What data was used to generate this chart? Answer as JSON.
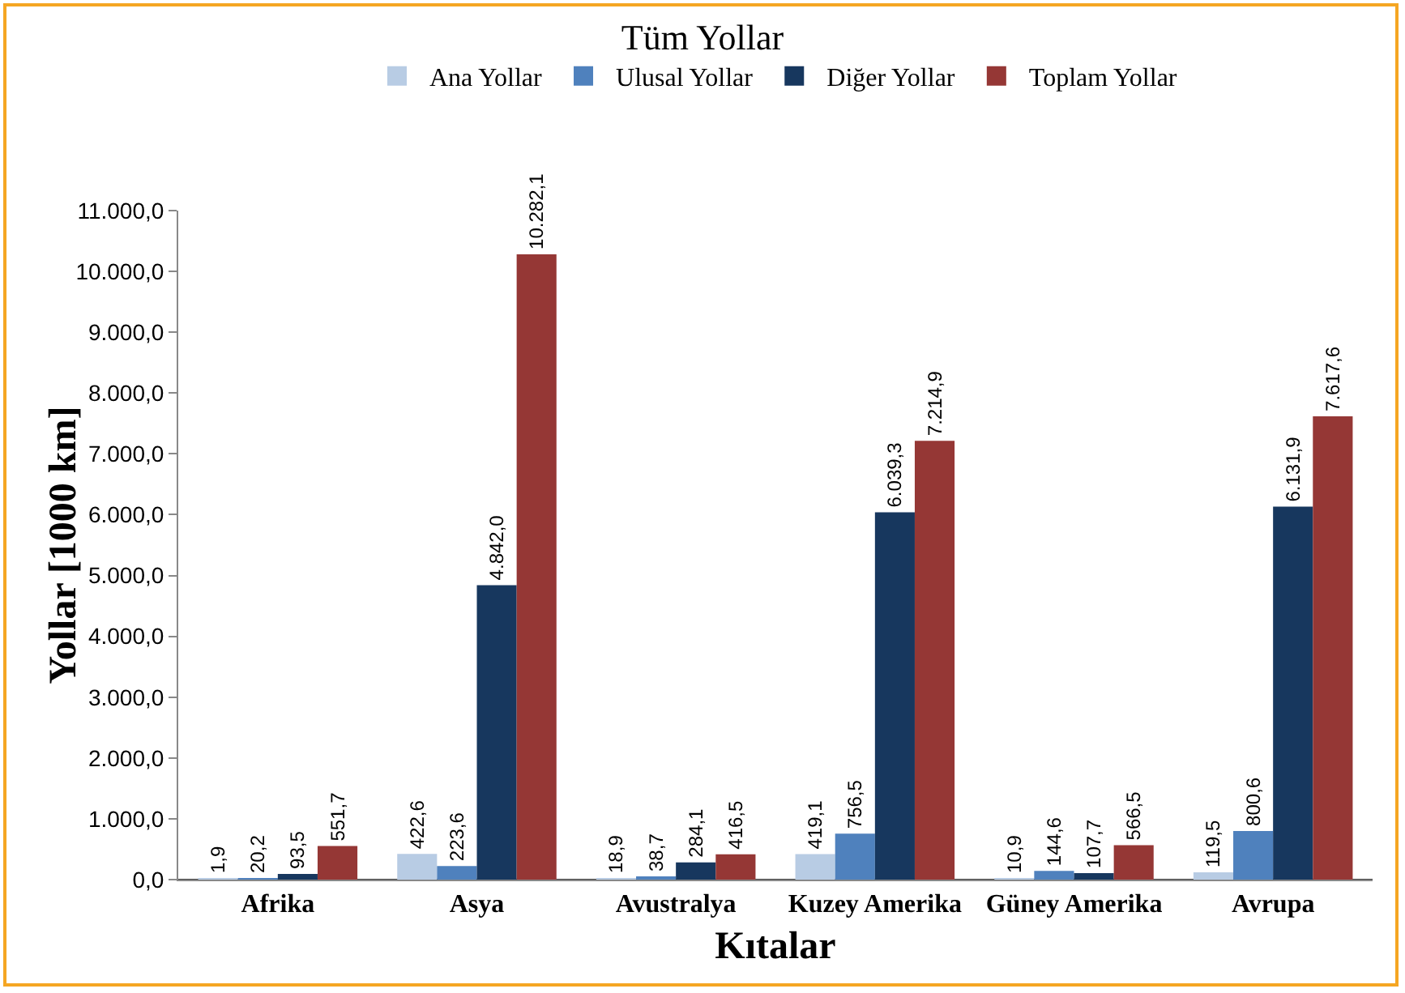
{
  "chart_data": {
    "type": "bar",
    "title": "Tüm Yollar",
    "xlabel": "Kıtalar",
    "ylabel": "Yollar [1000 km]",
    "categories": [
      "Afrika",
      "Asya",
      "Avustralya",
      "Kuzey Amerika",
      "Güney Amerika",
      "Avrupa"
    ],
    "series": [
      {
        "name": "Ana Yollar",
        "color": "#b8cce4",
        "values": [
          1.9,
          422.6,
          18.9,
          419.1,
          10.9,
          119.5
        ],
        "value_labels": [
          "1,9",
          "422,6",
          "18,9",
          "419,1",
          "10,9",
          "119,5"
        ]
      },
      {
        "name": "Ulusal Yollar",
        "color": "#4f81bd",
        "values": [
          20.2,
          223.6,
          38.7,
          756.5,
          144.6,
          800.6
        ],
        "value_labels": [
          "20,2",
          "223,6",
          "38,7",
          "756,5",
          "144,6",
          "800,6"
        ]
      },
      {
        "name": "Diğer Yollar",
        "color": "#17375e",
        "values": [
          93.5,
          4842.0,
          284.1,
          6039.3,
          107.7,
          6131.9
        ],
        "value_labels": [
          "93,5",
          "4.842,0",
          "284,1",
          "6.039,3",
          "107,7",
          "6.131,9"
        ]
      },
      {
        "name": "Toplam Yollar",
        "color": "#953735",
        "values": [
          551.7,
          10282.1,
          416.5,
          7214.9,
          566.5,
          7617.6
        ],
        "value_labels": [
          "551,7",
          "10.282,1",
          "416,5",
          "7.214,9",
          "566,5",
          "7.617,6"
        ]
      }
    ],
    "ylim": [
      0,
      11000
    ],
    "yticks": [
      {
        "value": 0,
        "label": "0,0"
      },
      {
        "value": 1000,
        "label": "1.000,0"
      },
      {
        "value": 2000,
        "label": "2.000,0"
      },
      {
        "value": 3000,
        "label": "3.000,0"
      },
      {
        "value": 4000,
        "label": "4.000,0"
      },
      {
        "value": 5000,
        "label": "5.000,0"
      },
      {
        "value": 6000,
        "label": "6.000,0"
      },
      {
        "value": 7000,
        "label": "7.000,0"
      },
      {
        "value": 8000,
        "label": "8.000,0"
      },
      {
        "value": 9000,
        "label": "9.000,0"
      },
      {
        "value": 10000,
        "label": "10.000,0"
      },
      {
        "value": 11000,
        "label": "11.000,0"
      }
    ],
    "grid": false,
    "legend": "top"
  }
}
